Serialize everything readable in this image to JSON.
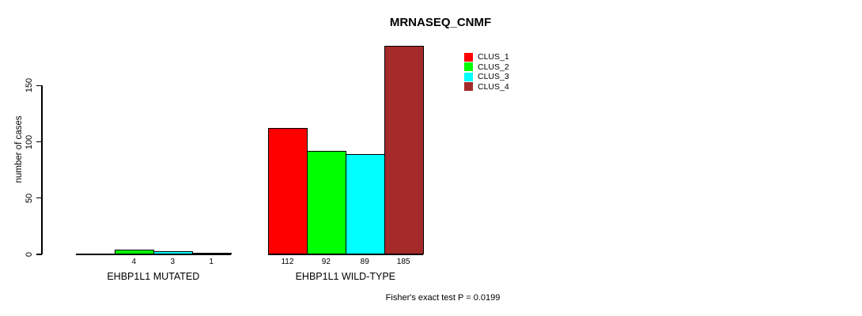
{
  "chart_data": {
    "type": "bar",
    "title": "MRNASEQ_CNMF",
    "xlabel": "",
    "ylabel": "number of cases",
    "ylim": [
      0,
      185
    ],
    "yticks": [
      0,
      50,
      100,
      150
    ],
    "grid": false,
    "legend_position": "top-right",
    "categories": [
      "EHBP1L1 MUTATED",
      "EHBP1L1 WILD-TYPE"
    ],
    "series": [
      {
        "name": "CLUS_1",
        "color": "#FF0000",
        "values": [
          0,
          112
        ],
        "labels": [
          "",
          "112"
        ]
      },
      {
        "name": "CLUS_2",
        "color": "#00FF00",
        "values": [
          4,
          92
        ],
        "labels": [
          "4",
          "92"
        ]
      },
      {
        "name": "CLUS_3",
        "color": "#00FFFF",
        "values": [
          3,
          89
        ],
        "labels": [
          "3",
          "89"
        ]
      },
      {
        "name": "CLUS_4",
        "color": "#A52A2A",
        "values": [
          1,
          185
        ],
        "labels": [
          "1",
          "185"
        ]
      }
    ],
    "annotation": "Fisher's exact test P = 0.0199"
  }
}
